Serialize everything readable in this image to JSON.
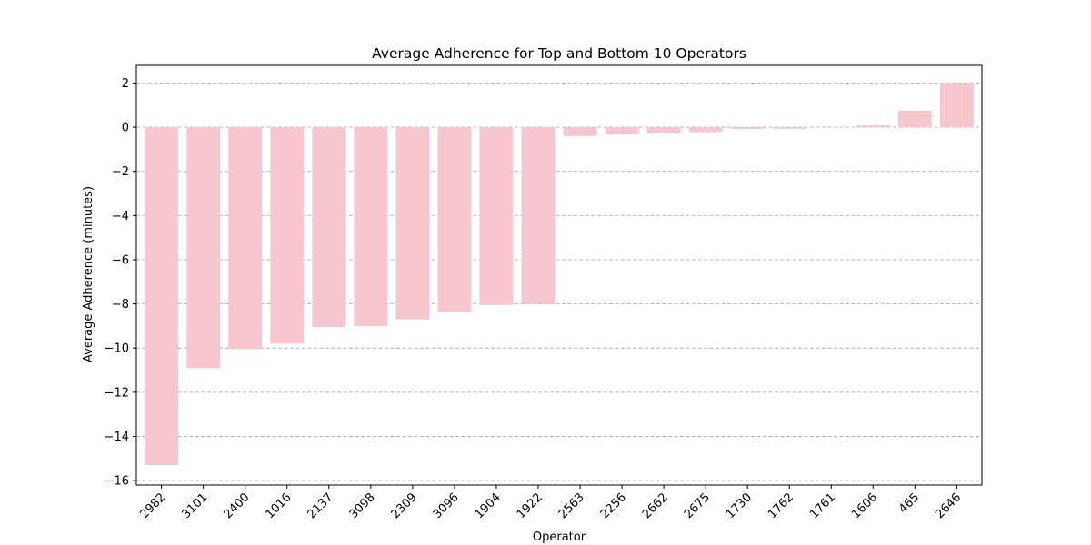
{
  "chart_data": {
    "type": "bar",
    "title": "Average Adherence for Top and Bottom 10 Operators",
    "xlabel": "Operator",
    "ylabel": "Average Adherence (minutes)",
    "categories": [
      "2982",
      "3101",
      "2400",
      "1016",
      "2137",
      "3098",
      "2309",
      "3096",
      "1904",
      "1922",
      "2563",
      "2256",
      "2662",
      "2675",
      "1730",
      "1762",
      "1761",
      "1606",
      "465",
      "2646"
    ],
    "values": [
      -15.3,
      -10.9,
      -10.05,
      -9.8,
      -9.05,
      -9.0,
      -8.7,
      -8.35,
      -8.05,
      -8.0,
      -0.4,
      -0.32,
      -0.25,
      -0.22,
      -0.08,
      -0.07,
      -0.01,
      0.08,
      0.75,
      2.0
    ],
    "ylim": [
      -16.2,
      2.8
    ],
    "yticks": [
      2,
      0,
      -2,
      -4,
      -6,
      -8,
      -10,
      -12,
      -14,
      -16
    ],
    "ytick_labels": [
      "2",
      "0",
      "−2",
      "−4",
      "−6",
      "−8",
      "−10",
      "−12",
      "−14",
      "−16"
    ],
    "grid": "y-dashed",
    "bar_color": "#f7c6ce"
  }
}
